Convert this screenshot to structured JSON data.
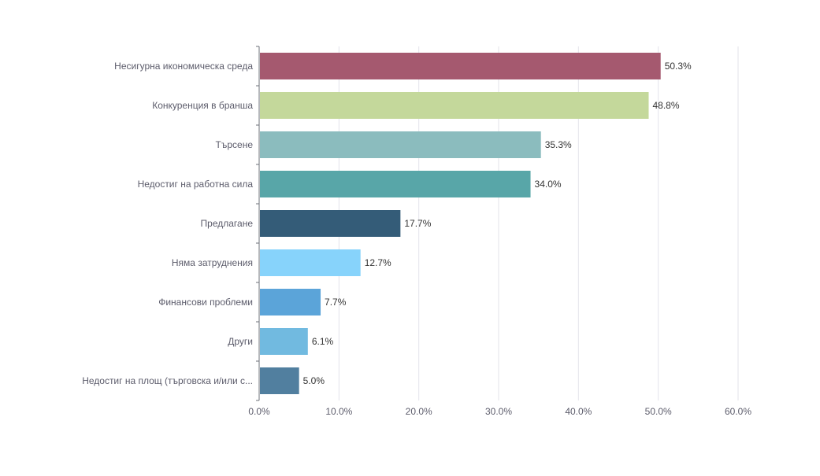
{
  "chart_data": {
    "type": "bar",
    "orientation": "horizontal",
    "title": "",
    "xlabel": "",
    "ylabel": "",
    "categories": [
      "Несигурна икономическа среда",
      "Конкуренция в бранша",
      "Търсене",
      "Недостиг на работна сила",
      "Предлагане",
      "Няма затруднения",
      "Финансови проблеми",
      "Други",
      "Недостиг на площ (търговска и/или с..."
    ],
    "values": [
      50.3,
      48.8,
      35.3,
      34.0,
      17.7,
      12.7,
      7.7,
      6.1,
      5.0
    ],
    "value_labels": [
      "50.3%",
      "48.8%",
      "35.3%",
      "34.0%",
      "17.7%",
      "12.7%",
      "7.7%",
      "6.1%",
      "5.0%"
    ],
    "colors": [
      "#a5596f",
      "#c4d89b",
      "#8bbcbe",
      "#58a6a8",
      "#345c78",
      "#87d3fb",
      "#5ba4d9",
      "#71bae0",
      "#517f9f"
    ],
    "xlim": [
      0,
      60
    ],
    "xticks": [
      0,
      10,
      20,
      30,
      40,
      50,
      60
    ],
    "xtick_labels": [
      "0.0%",
      "10.0%",
      "20.0%",
      "30.0%",
      "40.0%",
      "50.0%",
      "60.0%"
    ],
    "grid": true,
    "legend": "none"
  }
}
